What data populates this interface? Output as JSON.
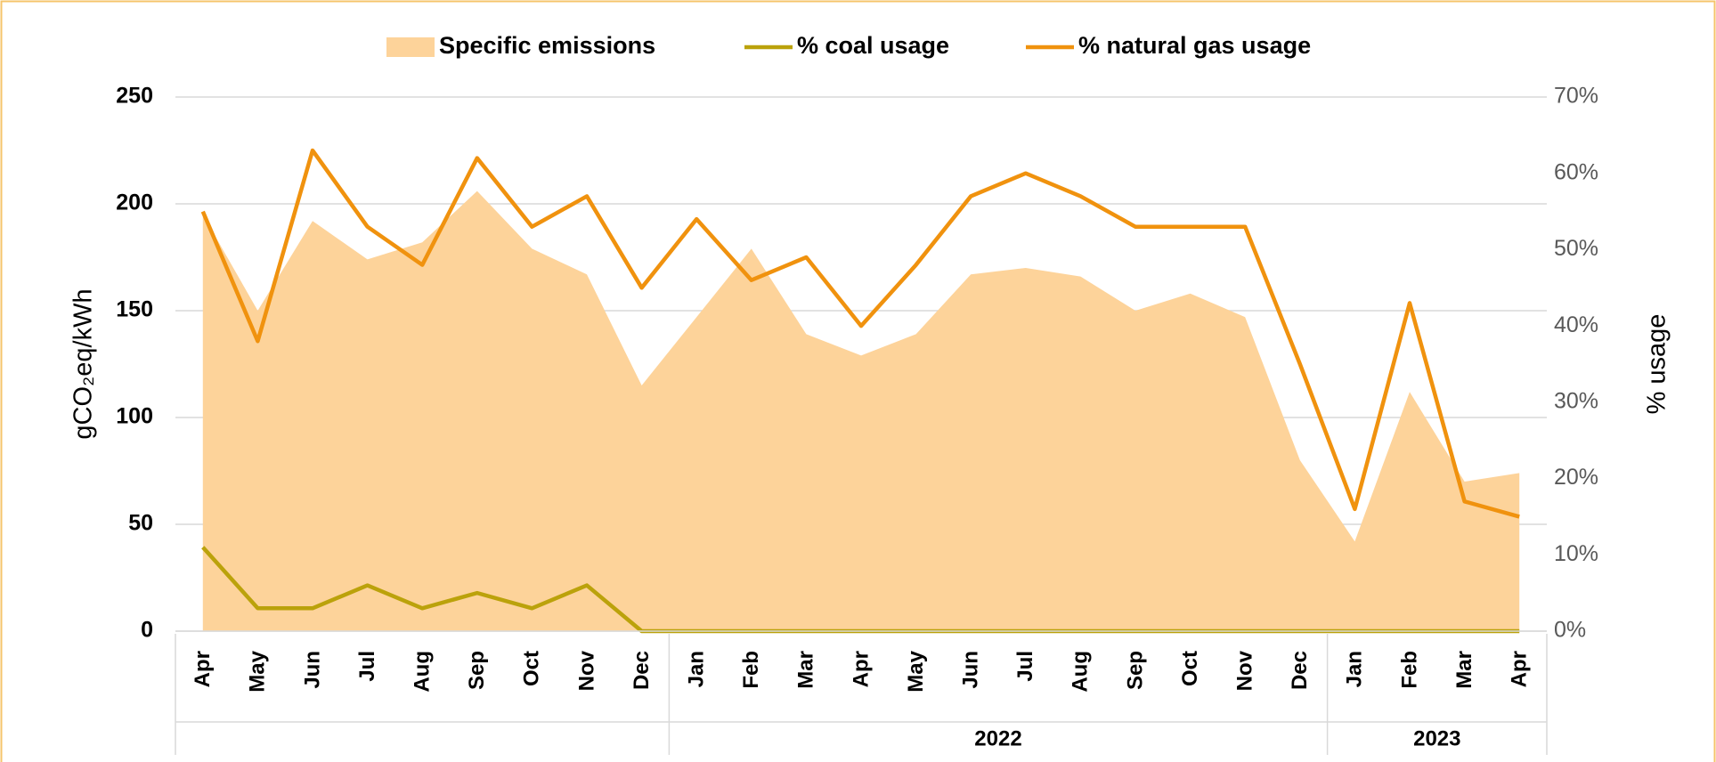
{
  "chart_data": {
    "type": "area_line",
    "legend_position": "top",
    "y_label": "gCO₂eq/kWh",
    "y2_label": "% usage",
    "categories": [
      "Apr",
      "May",
      "Jun",
      "Jul",
      "Aug",
      "Sep",
      "Oct",
      "Nov",
      "Dec",
      "Jan",
      "Feb",
      "Mar",
      "Apr",
      "May",
      "Jun",
      "Jul",
      "Aug",
      "Sep",
      "Oct",
      "Nov",
      "Dec",
      "Jan",
      "Feb",
      "Mar",
      "Apr"
    ],
    "groups": [
      {
        "span": 9
      },
      {
        "label": "2022",
        "span": 12
      },
      {
        "label": "2023",
        "span": 4
      }
    ],
    "ylim": [
      0,
      250
    ],
    "yticks": [
      0,
      50,
      100,
      150,
      200,
      250
    ],
    "y2lim": [
      0,
      70
    ],
    "y2ticks": [
      {
        "value": 0,
        "label": "0%"
      },
      {
        "value": 10,
        "label": "10%"
      },
      {
        "value": 20,
        "label": "20%"
      },
      {
        "value": 30,
        "label": "30%"
      },
      {
        "value": 40,
        "label": "40%"
      },
      {
        "value": 50,
        "label": "50%"
      },
      {
        "value": 60,
        "label": "60%"
      },
      {
        "value": 70,
        "label": "70%"
      }
    ],
    "grid": true,
    "series": [
      {
        "name": "Specific emissions",
        "kind": "area",
        "color": "#fdd39a",
        "values": [
          195,
          150,
          192,
          174,
          182,
          206,
          179,
          167,
          115,
          147,
          179,
          139,
          129,
          139,
          167,
          170,
          166,
          150,
          158,
          147,
          80,
          42,
          112,
          70,
          74
        ]
      },
      {
        "name": "% coal usage",
        "kind": "line",
        "axis": "y2",
        "color": "#bba20b",
        "values": [
          11,
          3,
          3,
          6,
          3,
          5,
          3,
          6,
          0,
          0,
          0,
          0,
          0,
          0,
          0,
          0,
          0,
          0,
          0,
          0,
          0,
          0,
          0,
          0,
          0
        ]
      },
      {
        "name": "% natural gas usage",
        "kind": "line",
        "axis": "y2",
        "color": "#f0920e",
        "values": [
          55,
          38,
          63,
          53,
          48,
          62,
          53,
          57,
          45,
          54,
          46,
          49,
          40,
          48,
          57,
          60,
          57,
          53,
          53,
          53,
          35,
          16,
          43,
          17,
          15
        ]
      }
    ]
  }
}
